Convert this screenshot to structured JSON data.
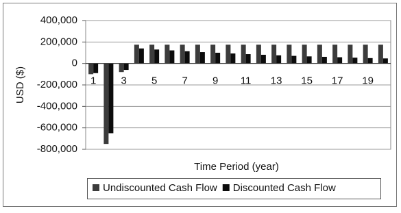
{
  "chart_data": {
    "type": "bar",
    "y_label": "USD ($)",
    "x_label": "Time Period (year)",
    "categories": [
      "1",
      null,
      "3",
      null,
      "5",
      null,
      "7",
      null,
      "9",
      null,
      "11",
      null,
      "13",
      null,
      "15",
      null,
      "17",
      null,
      "19",
      null
    ],
    "series": [
      {
        "name": "Undiscounted Cash Flow",
        "color": "#3c3c3c",
        "values": [
          -100000,
          -750000,
          -80000,
          175000,
          175000,
          175000,
          175000,
          175000,
          175000,
          175000,
          175000,
          175000,
          175000,
          175000,
          175000,
          175000,
          175000,
          175000,
          175000,
          175000
        ]
      },
      {
        "name": "Discounted Cash Flow",
        "color": "#0c0c0c",
        "values": [
          -90000,
          -650000,
          -60000,
          140000,
          130000,
          122000,
          114000,
          106000,
          100000,
          93000,
          87000,
          81000,
          76000,
          71000,
          66000,
          62000,
          58000,
          54000,
          50000,
          47000
        ]
      }
    ],
    "ylim": [
      -800000,
      400000
    ],
    "yticks": [
      {
        "value": -800000,
        "label": "-800,000"
      },
      {
        "value": -600000,
        "label": "-600,000"
      },
      {
        "value": -400000,
        "label": "-400,000"
      },
      {
        "value": -200000,
        "label": "-200,000"
      },
      0,
      {
        "value": 200000,
        "label": "200,000"
      },
      {
        "value": 400000,
        "label": "400,000"
      }
    ],
    "grid": true,
    "legend": "bottom"
  }
}
